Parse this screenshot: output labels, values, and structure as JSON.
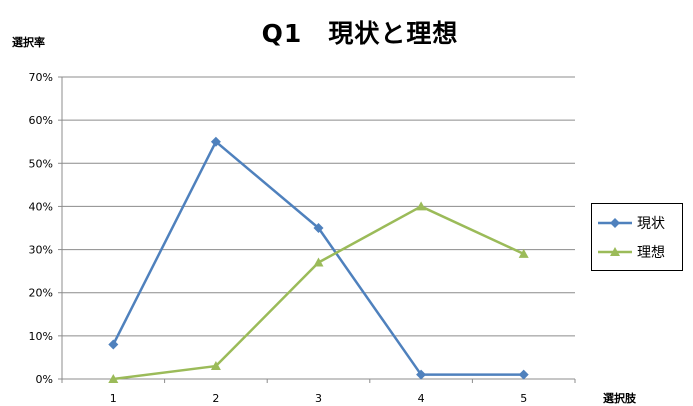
{
  "chart_data": {
    "type": "line",
    "title": "Q1　現状と理想",
    "ylabel": "選択率",
    "xlabel": "選択肢",
    "categories": [
      "1",
      "2",
      "3",
      "4",
      "5"
    ],
    "ylim": [
      0,
      70
    ],
    "yticks": [
      "0%",
      "10%",
      "20%",
      "30%",
      "40%",
      "50%",
      "60%",
      "70%"
    ],
    "grid": true,
    "legend_position": "right",
    "series": [
      {
        "name": "現状",
        "values": [
          8,
          55,
          35,
          1,
          1
        ],
        "color": "#4F81BD",
        "marker": "diamond"
      },
      {
        "name": "理想",
        "values": [
          0,
          3,
          27,
          40,
          29
        ],
        "color": "#9BBB59",
        "marker": "triangle"
      }
    ]
  }
}
